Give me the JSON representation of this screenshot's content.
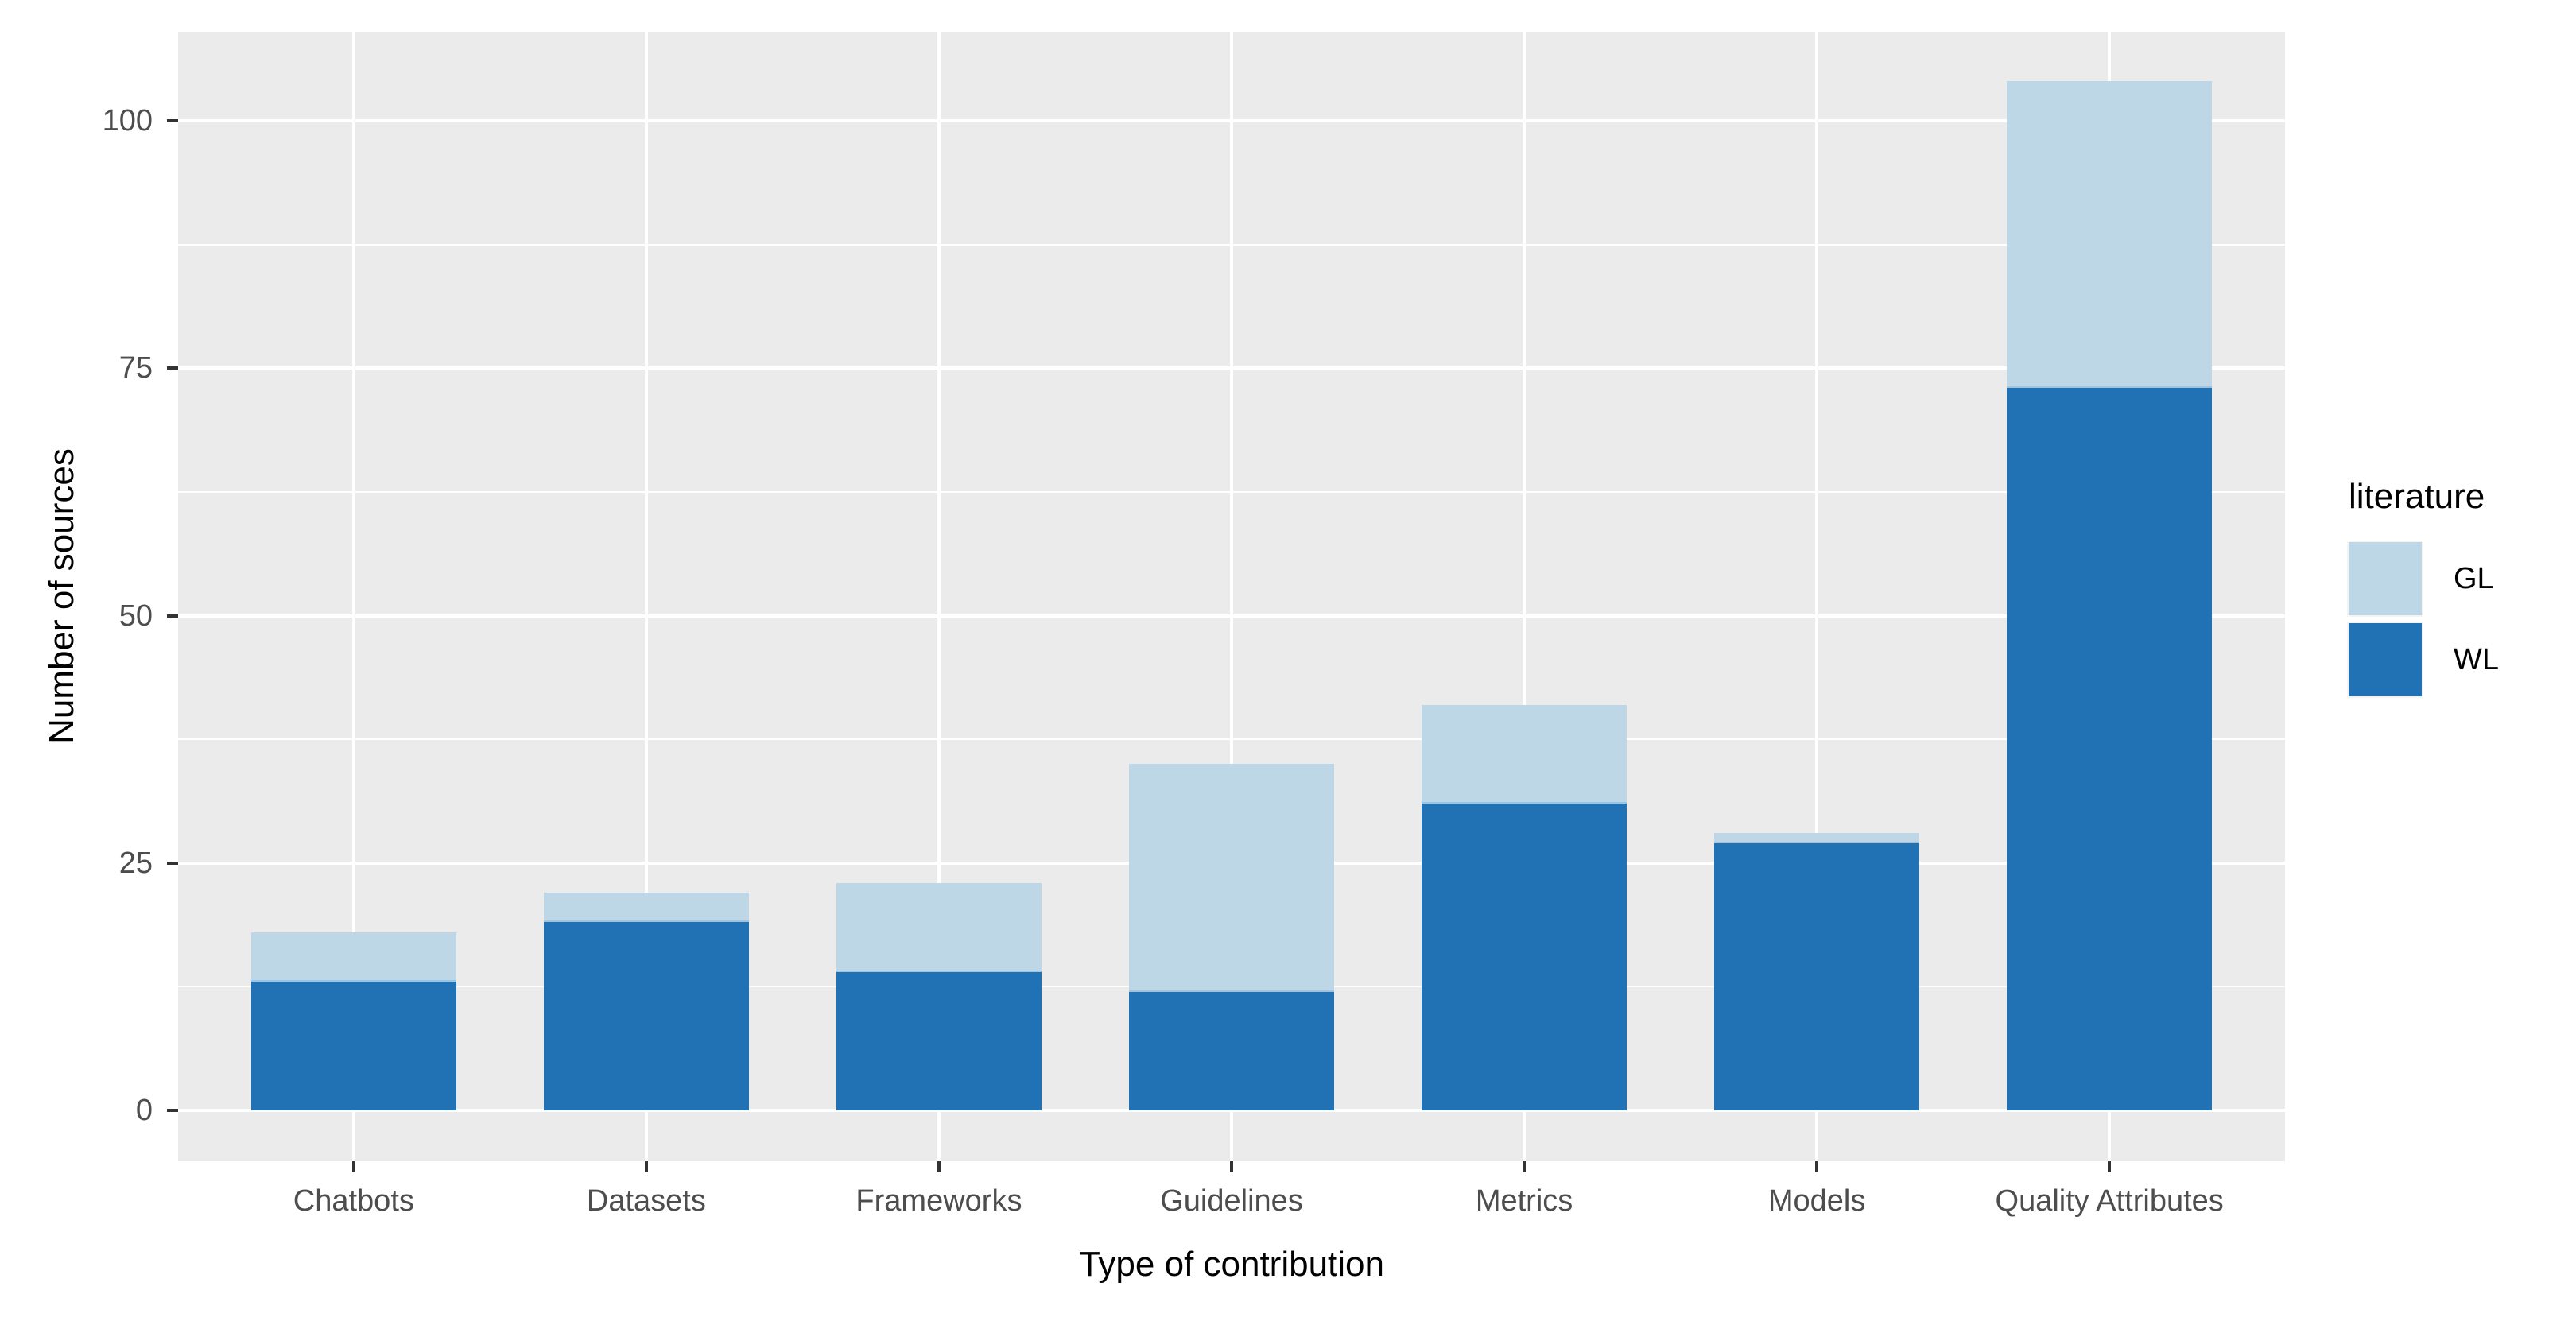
{
  "chart_data": {
    "type": "bar",
    "stacked": true,
    "xlabel": "Type of contribution",
    "ylabel": "Number of sources",
    "categories": [
      "Chatbots",
      "Datasets",
      "Frameworks",
      "Guidelines",
      "Metrics",
      "Models",
      "Quality Attributes"
    ],
    "series": [
      {
        "name": "GL",
        "color": "#BDD7E7",
        "values": [
          5,
          3,
          9,
          23,
          10,
          1,
          31
        ]
      },
      {
        "name": "WL",
        "color": "#2171B5",
        "values": [
          13,
          19,
          14,
          12,
          31,
          27,
          73
        ]
      }
    ],
    "totals": [
      18,
      22,
      23,
      35,
      41,
      28,
      104
    ],
    "ylim": [
      0,
      109.2
    ],
    "yticks": [
      0,
      25,
      50,
      75,
      100
    ],
    "yticks_minor": [
      12.5,
      37.5,
      62.5,
      87.5
    ],
    "grid": true,
    "legend_title": "literature",
    "legend_position": "right"
  },
  "style": {
    "panel_bg": "#EBEBEB",
    "grid_color": "#FFFFFF",
    "bar_dark": "#2171B5",
    "bar_light": "#BDD7E7",
    "tick_label_color": "#4D4D4D",
    "axis_title_color": "#000000"
  }
}
